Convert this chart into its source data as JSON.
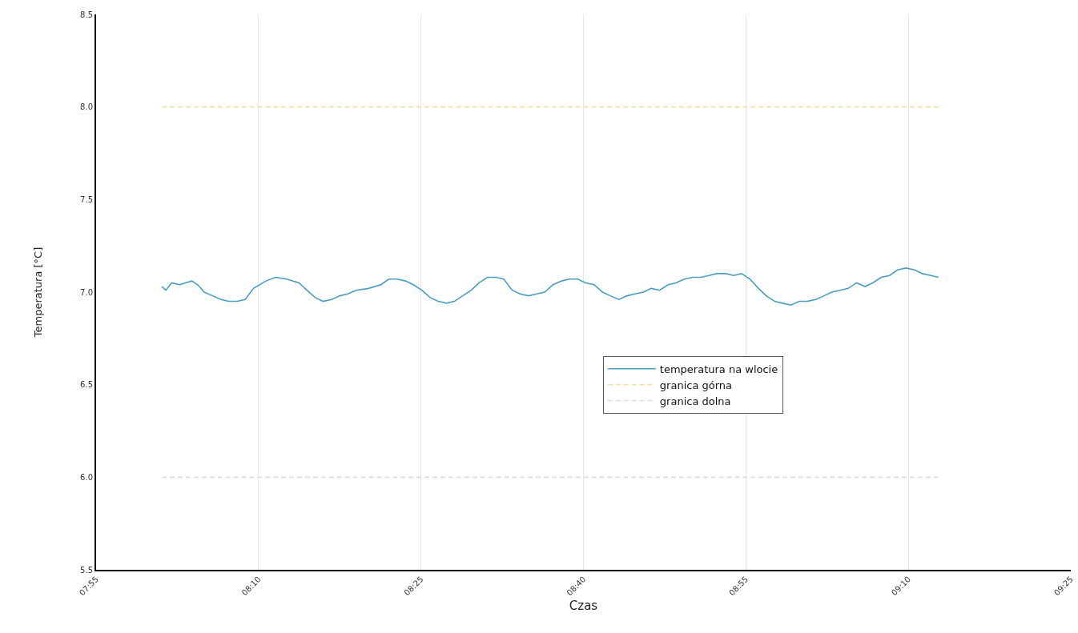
{
  "chart_data": {
    "type": "line",
    "xlabel": "Czas",
    "ylabel": "Temperatura [°C]",
    "xlim": [
      7.9167,
      9.4167
    ],
    "xticks": [
      {
        "value": 7.9167,
        "label": "07:55"
      },
      {
        "value": 8.1667,
        "label": "08:10"
      },
      {
        "value": 8.4167,
        "label": "08:25"
      },
      {
        "value": 8.6667,
        "label": "08:40"
      },
      {
        "value": 8.9167,
        "label": "08:55"
      },
      {
        "value": 9.1667,
        "label": "09:10"
      },
      {
        "value": 9.4167,
        "label": "09:25"
      }
    ],
    "ylim": [
      5.5,
      8.5
    ],
    "yticks": [
      {
        "value": 5.5,
        "label": "5.5"
      },
      {
        "value": 6.0,
        "label": "6.0"
      },
      {
        "value": 6.5,
        "label": "6.5"
      },
      {
        "value": 7.0,
        "label": "7.0"
      },
      {
        "value": 7.5,
        "label": "7.5"
      },
      {
        "value": 8.0,
        "label": "8.0"
      },
      {
        "value": 8.5,
        "label": "8.5"
      }
    ],
    "grid": "x",
    "legend": "bottom right",
    "marker": "none",
    "series": [
      {
        "name": "temperatura na wlocie",
        "color": "#4a9cc4",
        "line_style": "solid",
        "x": [
          8.018,
          8.024,
          8.033,
          8.045,
          8.064,
          8.073,
          8.083,
          8.096,
          8.109,
          8.121,
          8.134,
          8.146,
          8.159,
          8.178,
          8.193,
          8.21,
          8.229,
          8.241,
          8.254,
          8.266,
          8.279,
          8.292,
          8.304,
          8.317,
          8.336,
          8.355,
          8.367,
          8.38,
          8.393,
          8.405,
          8.418,
          8.431,
          8.443,
          8.456,
          8.468,
          8.481,
          8.494,
          8.506,
          8.519,
          8.532,
          8.544,
          8.557,
          8.569,
          8.582,
          8.595,
          8.607,
          8.62,
          8.633,
          8.645,
          8.658,
          8.67,
          8.683,
          8.696,
          8.708,
          8.721,
          8.734,
          8.746,
          8.759,
          8.771,
          8.784,
          8.797,
          8.809,
          8.822,
          8.835,
          8.847,
          8.86,
          8.872,
          8.885,
          8.898,
          8.91,
          8.923,
          8.936,
          8.948,
          8.961,
          8.973,
          8.986,
          8.999,
          9.011,
          9.024,
          9.037,
          9.049,
          9.062,
          9.074,
          9.087,
          9.1,
          9.112,
          9.125,
          9.138,
          9.15,
          9.163,
          9.176,
          9.188,
          9.201,
          9.213
        ],
        "values": [
          7.03,
          7.01,
          7.05,
          7.04,
          7.06,
          7.04,
          7.0,
          6.98,
          6.96,
          6.95,
          6.95,
          6.96,
          7.02,
          7.06,
          7.08,
          7.07,
          7.05,
          7.01,
          6.97,
          6.95,
          6.96,
          6.98,
          6.99,
          7.01,
          7.02,
          7.04,
          7.07,
          7.07,
          7.06,
          7.04,
          7.01,
          6.97,
          6.95,
          6.94,
          6.95,
          6.98,
          7.01,
          7.05,
          7.08,
          7.08,
          7.07,
          7.01,
          6.99,
          6.98,
          6.99,
          7.0,
          7.04,
          7.06,
          7.07,
          7.07,
          7.05,
          7.04,
          7.0,
          6.98,
          6.96,
          6.98,
          6.99,
          7.0,
          7.02,
          7.01,
          7.04,
          7.05,
          7.07,
          7.08,
          7.08,
          7.09,
          7.1,
          7.1,
          7.09,
          7.1,
          7.07,
          7.02,
          6.98,
          6.95,
          6.94,
          6.93,
          6.95,
          6.95,
          6.96,
          6.98,
          7.0,
          7.01,
          7.02,
          7.05,
          7.03,
          7.05,
          7.08,
          7.09,
          7.12,
          7.13,
          7.12,
          7.1,
          7.09,
          7.08
        ]
      },
      {
        "name": "granica górna",
        "color": "#efe4a8",
        "line_style": "dashed",
        "x": [
          8.018,
          9.213
        ],
        "values": [
          8.0,
          8.0
        ]
      },
      {
        "name": "granica dolna",
        "color": "#dcdcdc",
        "line_style": "dashed",
        "x": [
          8.018,
          9.213
        ],
        "values": [
          6.0,
          6.0
        ]
      }
    ]
  }
}
